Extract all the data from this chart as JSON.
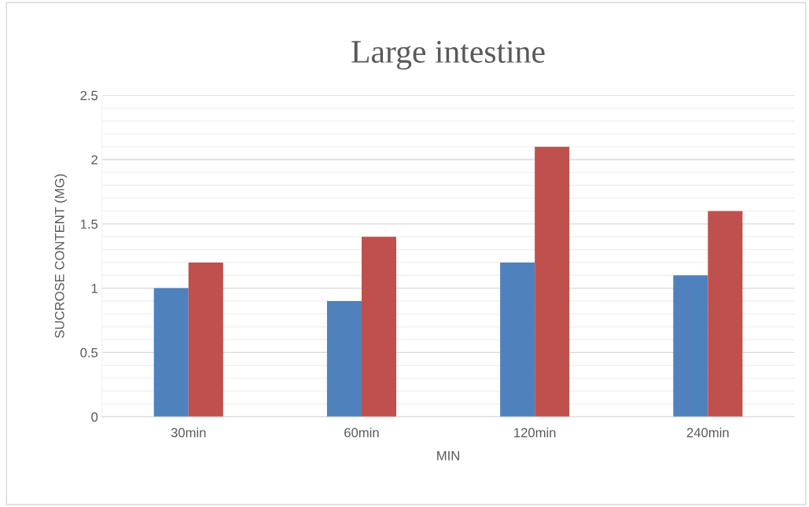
{
  "chart_data": {
    "type": "bar",
    "title": "Large intestine",
    "xlabel": "MIN",
    "ylabel": "SUCROSE CONTENT (MG)",
    "categories": [
      "30min",
      "60min",
      "120min",
      "240min"
    ],
    "series": [
      {
        "color": "#4f81bd",
        "values": [
          1.0,
          0.9,
          1.2,
          1.1
        ]
      },
      {
        "color": "#c0504d",
        "values": [
          1.2,
          1.4,
          2.1,
          1.6
        ]
      }
    ],
    "ylim": [
      0,
      2.5
    ],
    "yticks": [
      0,
      {
        "value": 0.1,
        "label": null
      },
      {
        "value": 0.2,
        "label": null
      },
      {
        "value": 0.3,
        "label": null
      },
      {
        "value": 0.4,
        "label": null
      },
      0.5,
      {
        "value": 0.6,
        "label": null
      },
      {
        "value": 0.7,
        "label": null
      },
      {
        "value": 0.8,
        "label": null
      },
      {
        "value": 0.9,
        "label": null
      },
      1,
      {
        "value": 1.1,
        "label": null
      },
      {
        "value": 1.2,
        "label": null
      },
      {
        "value": 1.3,
        "label": null
      },
      {
        "value": 1.4,
        "label": null
      },
      1.5,
      {
        "value": 1.6,
        "label": null
      },
      {
        "value": 1.7,
        "label": null
      },
      {
        "value": 1.8,
        "label": null
      },
      {
        "value": 1.9,
        "label": null
      },
      2,
      {
        "value": 2.1,
        "label": null
      },
      {
        "value": 2.2,
        "label": null
      },
      {
        "value": 2.3,
        "label": null
      },
      {
        "value": 2.4,
        "label": null
      },
      2.5
    ],
    "grid": "y"
  }
}
